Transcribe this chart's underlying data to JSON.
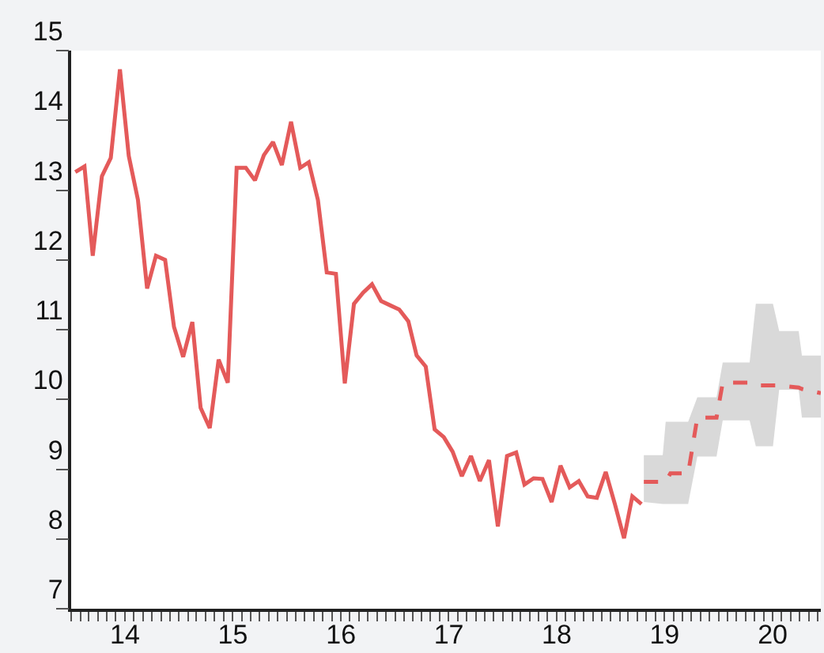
{
  "chart_data": {
    "type": "line",
    "xlim": [
      "2014-01-01",
      "2020-12-12"
    ],
    "ylim": [
      7,
      15
    ],
    "xticks": [
      {
        "value": "2014-07-02",
        "label": "14"
      },
      {
        "value": "2015-07-02",
        "label": "15"
      },
      {
        "value": "2016-07-02",
        "label": "16"
      },
      {
        "value": "2017-07-02",
        "label": "17"
      },
      {
        "value": "2018-07-02",
        "label": "18"
      },
      {
        "value": "2019-07-02",
        "label": "19"
      },
      {
        "value": "2020-07-02",
        "label": "20"
      }
    ],
    "yticks": [
      7,
      8,
      9,
      10,
      11,
      12,
      13,
      14,
      15
    ],
    "marker": "none",
    "series": [
      {
        "color": "#e45a5a",
        "line_style": "solid",
        "x": [
          "2014-01-15",
          "2014-02-15",
          "2014-03-15",
          "2014-04-15",
          "2014-05-15",
          "2014-06-15",
          "2014-07-15",
          "2014-08-15",
          "2014-09-15",
          "2014-10-15",
          "2014-11-15",
          "2014-12-15",
          "2015-01-15",
          "2015-02-15",
          "2015-03-15",
          "2015-04-15",
          "2015-05-15",
          "2015-06-15",
          "2015-07-15",
          "2015-08-15",
          "2015-09-15",
          "2015-10-15",
          "2015-11-15",
          "2015-12-15",
          "2016-01-15",
          "2016-02-15",
          "2016-03-15",
          "2016-04-15",
          "2016-05-15",
          "2016-06-15",
          "2016-07-15",
          "2016-08-15",
          "2016-09-15",
          "2016-10-15",
          "2016-11-15",
          "2016-12-15",
          "2017-01-15",
          "2017-02-15",
          "2017-03-15",
          "2017-04-15",
          "2017-05-15",
          "2017-06-15",
          "2017-07-15",
          "2017-08-15",
          "2017-09-15",
          "2017-10-15",
          "2017-11-15",
          "2017-12-15",
          "2018-01-15",
          "2018-02-15",
          "2018-03-15",
          "2018-04-15",
          "2018-05-15",
          "2018-06-15",
          "2018-07-15",
          "2018-08-15",
          "2018-09-15",
          "2018-10-15",
          "2018-11-15",
          "2018-12-15",
          "2019-01-15",
          "2019-02-15",
          "2019-03-15",
          "2019-04-15"
        ],
        "values": [
          13.26,
          13.34,
          12.06,
          13.2,
          13.46,
          14.73,
          13.49,
          12.86,
          11.59,
          12.06,
          12.0,
          11.04,
          10.61,
          11.11,
          9.88,
          9.59,
          10.57,
          10.24,
          13.32,
          13.32,
          13.14,
          13.5,
          13.69,
          13.36,
          13.98,
          13.32,
          13.4,
          12.86,
          11.82,
          11.8,
          10.23,
          11.37,
          11.53,
          11.65,
          11.41,
          11.35,
          11.29,
          11.12,
          10.63,
          10.47,
          9.57,
          9.46,
          9.25,
          8.9,
          9.19,
          8.83,
          9.13,
          8.18,
          9.19,
          9.24,
          8.78,
          8.87,
          8.86,
          8.53,
          9.05,
          8.74,
          8.83,
          8.61,
          8.59,
          8.96,
          8.5,
          8.01,
          8.61,
          8.5
        ]
      },
      {
        "color": "#e45a5a",
        "line_style": "dashed",
        "x": [
          "2019-04-23",
          "2019-06-26",
          "2019-07-06",
          "2019-07-22",
          "2019-09-20",
          "2019-10-21",
          "2019-12-25",
          "2020-01-15",
          "2020-04-15",
          "2020-05-06",
          "2020-07-03",
          "2020-07-24",
          "2020-09-28",
          "2020-10-09",
          "2020-12-12"
        ],
        "values": [
          8.82,
          8.82,
          8.82,
          8.94,
          8.94,
          9.74,
          9.74,
          10.24,
          10.24,
          10.2,
          10.2,
          10.2,
          10.17,
          10.15,
          10.09
        ],
        "lower": [
          8.53,
          8.5,
          8.5,
          8.5,
          8.5,
          9.18,
          9.18,
          9.7,
          9.7,
          9.33,
          9.33,
          10.14,
          10.14,
          9.74,
          9.74
        ],
        "upper": [
          9.2,
          9.2,
          9.68,
          9.68,
          9.68,
          10.03,
          10.03,
          10.53,
          10.53,
          11.37,
          11.37,
          10.98,
          10.98,
          10.63,
          10.63
        ]
      }
    ]
  }
}
